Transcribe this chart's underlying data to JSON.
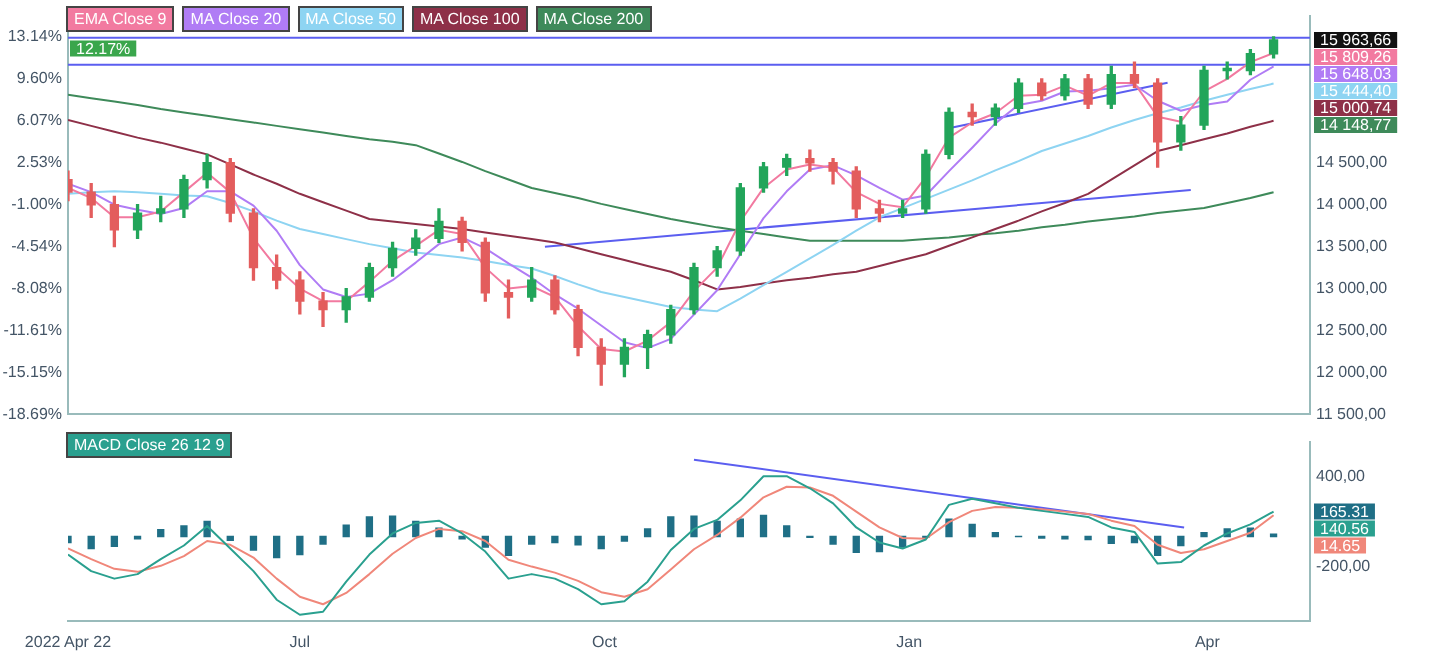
{
  "chart_data": [
    {
      "type": "candlestick",
      "legend": "top left",
      "tick_labels": "y",
      "x": [
        "2022-04-22",
        "2022-04-29",
        "2022-05-06",
        "2022-05-13",
        "2022-05-20",
        "2022-05-27",
        "2022-06-03",
        "2022-06-10",
        "2022-06-17",
        "2022-06-24",
        "2022-07-01",
        "2022-07-08",
        "2022-07-15",
        "2022-07-22",
        "2022-07-29",
        "2022-08-05",
        "2022-08-12",
        "2022-08-19",
        "2022-08-26",
        "2022-09-02",
        "2022-09-09",
        "2022-09-16",
        "2022-09-23",
        "2022-09-30",
        "2022-10-07",
        "2022-10-14",
        "2022-10-21",
        "2022-10-28",
        "2022-11-04",
        "2022-11-11",
        "2022-11-18",
        "2022-11-25",
        "2022-12-02",
        "2022-12-09",
        "2022-12-16",
        "2022-12-23",
        "2022-12-30",
        "2023-01-06",
        "2023-01-13",
        "2023-01-20",
        "2023-01-27",
        "2023-02-03",
        "2023-02-10",
        "2023-02-17",
        "2023-02-24",
        "2023-03-03",
        "2023-03-10",
        "2023-03-17",
        "2023-03-24",
        "2023-03-31",
        "2023-04-07",
        "2023-04-14",
        "2023-04-21"
      ],
      "ohlc": [
        [
          14300,
          14400,
          14050,
          14150
        ],
        [
          14150,
          14250,
          13850,
          14000
        ],
        [
          14000,
          14100,
          13500,
          13700
        ],
        [
          13700,
          14000,
          13600,
          13900
        ],
        [
          13900,
          14100,
          13800,
          13950
        ],
        [
          13950,
          14350,
          13850,
          14300
        ],
        [
          14300,
          14600,
          14200,
          14500
        ],
        [
          14500,
          14550,
          13800,
          13900
        ],
        [
          13900,
          13950,
          13100,
          13250
        ],
        [
          13250,
          13400,
          13000,
          13100
        ],
        [
          13100,
          13200,
          12700,
          12850
        ],
        [
          12850,
          12950,
          12550,
          12750
        ],
        [
          12750,
          13000,
          12600,
          12900
        ],
        [
          12900,
          13300,
          12850,
          13250
        ],
        [
          13250,
          13550,
          13150,
          13480
        ],
        [
          13480,
          13700,
          13400,
          13600
        ],
        [
          13600,
          13950,
          13550,
          13800
        ],
        [
          13800,
          13850,
          13450,
          13550
        ],
        [
          13550,
          13600,
          12850,
          12950
        ],
        [
          12950,
          13100,
          12650,
          12900
        ],
        [
          12900,
          13250,
          12850,
          13100
        ],
        [
          13100,
          13150,
          12700,
          12750
        ],
        [
          12750,
          12800,
          12200,
          12300
        ],
        [
          12300,
          12400,
          11850,
          12100
        ],
        [
          12100,
          12400,
          11950,
          12300
        ],
        [
          12300,
          12500,
          12050,
          12450
        ],
        [
          12450,
          12800,
          12350,
          12750
        ],
        [
          12750,
          13300,
          12700,
          13250
        ],
        [
          13250,
          13500,
          13150,
          13450
        ],
        [
          13450,
          14250,
          13400,
          14200
        ],
        [
          14200,
          14500,
          14150,
          14450
        ],
        [
          14450,
          14600,
          14350,
          14550
        ],
        [
          14550,
          14650,
          14400,
          14500
        ],
        [
          14500,
          14550,
          14250,
          14400
        ],
        [
          14400,
          14450,
          13850,
          13950
        ],
        [
          13950,
          14050,
          13800,
          13900
        ],
        [
          13900,
          14050,
          13850,
          13950
        ],
        [
          13950,
          14650,
          13900,
          14600
        ],
        [
          14600,
          15150,
          14550,
          15100
        ],
        [
          15100,
          15200,
          14950,
          15050
        ],
        [
          15050,
          15200,
          14950,
          15150
        ],
        [
          15150,
          15500,
          15100,
          15450
        ],
        [
          15450,
          15500,
          15250,
          15300
        ],
        [
          15300,
          15550,
          15250,
          15500
        ],
        [
          15500,
          15550,
          15150,
          15200
        ],
        [
          15200,
          15650,
          15150,
          15550
        ],
        [
          15550,
          15700,
          15400,
          15450
        ],
        [
          15450,
          15500,
          14450,
          14750
        ],
        [
          14750,
          15050,
          14650,
          14950
        ],
        [
          14950,
          15650,
          14900,
          15600
        ],
        [
          15600,
          15700,
          15500,
          15600
        ],
        [
          15600,
          15850,
          15550,
          15800
        ],
        [
          15800,
          16000,
          15750,
          15963.66
        ]
      ],
      "colors": [
        "#e35d5d",
        "#e35d5d",
        "#e35d5d",
        "#22a55a",
        "#22a55a",
        "#22a55a",
        "#22a55a",
        "#e35d5d",
        "#e35d5d",
        "#e35d5d",
        "#e35d5d",
        "#e35d5d",
        "#22a55a",
        "#22a55a",
        "#22a55a",
        "#22a55a",
        "#22a55a",
        "#e35d5d",
        "#e35d5d",
        "#e35d5d",
        "#22a55a",
        "#e35d5d",
        "#e35d5d",
        "#e35d5d",
        "#22a55a",
        "#22a55a",
        "#22a55a",
        "#22a55a",
        "#22a55a",
        "#22a55a",
        "#22a55a",
        "#22a55a",
        "#e35d5d",
        "#e35d5d",
        "#e35d5d",
        "#e35d5d",
        "#22a55a",
        "#22a55a",
        "#22a55a",
        "#e35d5d",
        "#22a55a",
        "#22a55a",
        "#e35d5d",
        "#22a55a",
        "#e35d5d",
        "#22a55a",
        "#e35d5d",
        "#e35d5d",
        "#22a55a",
        "#22a55a",
        "#22a55a",
        "#22a55a",
        "#22a55a"
      ],
      "series": [
        {
          "type": "line",
          "name": "EMA Close 9",
          "color": "#f27aa0",
          "values": [
            14200,
            14080,
            13850,
            13850,
            13920,
            14150,
            14380,
            14150,
            13600,
            13250,
            13000,
            12850,
            12850,
            13080,
            13330,
            13510,
            13700,
            13650,
            13250,
            13000,
            13030,
            12900,
            12550,
            12280,
            12250,
            12380,
            12600,
            12970,
            13250,
            13800,
            14200,
            14420,
            14480,
            14440,
            14150,
            14010,
            13970,
            14330,
            14800,
            14980,
            15090,
            15300,
            15310,
            15420,
            15300,
            15450,
            15450,
            15050,
            14990,
            15350,
            15500,
            15700,
            15809.26
          ]
        },
        {
          "type": "line",
          "name": "MA Close 20",
          "color": "#b07cf5",
          "values": [
            14250,
            14150,
            14000,
            13940,
            13890,
            13960,
            14160,
            14160,
            13990,
            13690,
            13280,
            12990,
            12900,
            12940,
            13100,
            13310,
            13530,
            13610,
            13480,
            13300,
            13130,
            12930,
            12760,
            12560,
            12360,
            12290,
            12400,
            12690,
            12980,
            13410,
            13840,
            14160,
            14420,
            14470,
            14350,
            14200,
            14060,
            14110,
            14400,
            14680,
            14970,
            15190,
            15240,
            15350,
            15360,
            15390,
            15430,
            15240,
            15120,
            15190,
            15230,
            15490,
            15648.03
          ]
        },
        {
          "type": "line",
          "name": "MA Close 50",
          "color": "#8ed4f2",
          "values": [
            14130,
            14150,
            14160,
            14150,
            14130,
            14110,
            14100,
            14020,
            13920,
            13810,
            13710,
            13650,
            13590,
            13530,
            13480,
            13430,
            13400,
            13370,
            13330,
            13280,
            13240,
            13150,
            13050,
            12960,
            12900,
            12840,
            12780,
            12750,
            12730,
            12880,
            13040,
            13200,
            13360,
            13520,
            13690,
            13850,
            13960,
            14070,
            14180,
            14290,
            14410,
            14520,
            14640,
            14730,
            14820,
            14920,
            15010,
            15090,
            15160,
            15240,
            15310,
            15380,
            15444.4
          ]
        },
        {
          "type": "line",
          "name": "MA Close 100",
          "color": "#8e3048",
          "values": [
            15010,
            14940,
            14870,
            14800,
            14740,
            14670,
            14600,
            14480,
            14360,
            14250,
            14130,
            14030,
            13930,
            13830,
            13800,
            13770,
            13740,
            13710,
            13670,
            13630,
            13590,
            13550,
            13480,
            13410,
            13340,
            13270,
            13200,
            13100,
            12990,
            13020,
            13060,
            13100,
            13130,
            13170,
            13200,
            13270,
            13340,
            13410,
            13510,
            13610,
            13710,
            13810,
            13920,
            14020,
            14130,
            14300,
            14470,
            14640,
            14710,
            14780,
            14850,
            14930,
            15000.74
          ]
        },
        {
          "type": "line",
          "name": "MA Close 200",
          "color": "#3e8a5a",
          "values": [
            15310,
            15270,
            15230,
            15190,
            15140,
            15100,
            15060,
            15020,
            14980,
            14940,
            14900,
            14860,
            14820,
            14780,
            14750,
            14710,
            14610,
            14510,
            14400,
            14300,
            14200,
            14140,
            14080,
            14010,
            13950,
            13890,
            13830,
            13780,
            13730,
            13690,
            13650,
            13610,
            13570,
            13570,
            13570,
            13570,
            13570,
            13590,
            13610,
            13640,
            13660,
            13690,
            13730,
            13760,
            13800,
            13830,
            13860,
            13900,
            13930,
            13960,
            14020,
            14080,
            14148.77
          ]
        },
        {
          "type": "line",
          "color": "#5b5ef0",
          "x": [
            "2022-09-13",
            "2023-03-27"
          ],
          "values": [
            13500,
            14175
          ]
        },
        {
          "type": "line",
          "color": "#5b5ef0",
          "x": [
            "2023-01-14",
            "2023-03-20"
          ],
          "values": [
            14920,
            15455
          ]
        }
      ],
      "ref_lines": [
        {
          "axis": "y",
          "value": 15990,
          "color": "#5b5ef0"
        },
        {
          "axis": "y",
          "value": 15670,
          "color": "#5b5ef0"
        }
      ],
      "xlim": [
        "2022-04-22",
        "2023-05-02"
      ],
      "ylim": [
        11500,
        16250
      ],
      "yticks": [
        {
          "value": 11500,
          "label": "11 500,00"
        },
        {
          "value": 12000,
          "label": "12 000,00"
        },
        {
          "value": 12500,
          "label": "12 500,00"
        },
        {
          "value": 13000,
          "label": "13 000,00"
        },
        {
          "value": 13500,
          "label": "13 500,00"
        },
        {
          "value": 14000,
          "label": "14 000,00"
        },
        {
          "value": 14500,
          "label": "14 500,00"
        }
      ],
      "y2lim": [
        -18.69,
        14.91
      ],
      "y2ticks": [
        {
          "value": -18.69,
          "label": "-18.69%"
        },
        {
          "value": -15.15,
          "label": "-15.15%"
        },
        {
          "value": -11.61,
          "label": "-11.61%"
        },
        {
          "value": -8.08,
          "label": "-8.08%"
        },
        {
          "value": -4.54,
          "label": "-4.54%"
        },
        {
          "value": -1,
          "label": "-1.00%"
        },
        {
          "value": 2.53,
          "label": "2.53%"
        },
        {
          "value": 6.07,
          "label": "6.07%"
        },
        {
          "value": 9.6,
          "label": "9.60%"
        },
        {
          "value": 13.14,
          "label": "13.14%"
        }
      ],
      "annotations": [
        "15 963,66",
        "15 809,26",
        "15 648,03",
        "15 444,40",
        "15 000,74",
        "14 148,77",
        {
          "text": "12.17%",
          "x": "2022-04-22",
          "y": 15863
        }
      ]
    },
    {
      "type": "line",
      "legend": "top left",
      "x": [
        "2022-04-22",
        "2022-04-29",
        "2022-05-06",
        "2022-05-13",
        "2022-05-20",
        "2022-05-27",
        "2022-06-03",
        "2022-06-10",
        "2022-06-17",
        "2022-06-24",
        "2022-07-01",
        "2022-07-08",
        "2022-07-15",
        "2022-07-22",
        "2022-07-29",
        "2022-08-05",
        "2022-08-12",
        "2022-08-19",
        "2022-08-26",
        "2022-09-02",
        "2022-09-09",
        "2022-09-16",
        "2022-09-23",
        "2022-09-30",
        "2022-10-07",
        "2022-10-14",
        "2022-10-21",
        "2022-10-28",
        "2022-11-04",
        "2022-11-11",
        "2022-11-18",
        "2022-11-25",
        "2022-12-02",
        "2022-12-09",
        "2022-12-16",
        "2022-12-23",
        "2022-12-30",
        "2023-01-06",
        "2023-01-13",
        "2023-01-20",
        "2023-01-27",
        "2023-02-03",
        "2023-02-10",
        "2023-02-17",
        "2023-02-24",
        "2023-03-03",
        "2023-03-10",
        "2023-03-17",
        "2023-03-24",
        "2023-03-31",
        "2023-04-07",
        "2023-04-14",
        "2023-04-21"
      ],
      "series": [
        {
          "type": "bar",
          "color": "#1f6f86",
          "values": [
            -40,
            -80,
            -65,
            -15,
            45,
            70,
            100,
            -25,
            -90,
            -140,
            -120,
            -50,
            75,
            130,
            135,
            100,
            55,
            -15,
            -70,
            -125,
            -50,
            -40,
            -55,
            -80,
            -30,
            50,
            130,
            135,
            100,
            115,
            140,
            70,
            -5,
            -50,
            -105,
            -100,
            -70,
            -5,
            115,
            80,
            25,
            0,
            -10,
            -15,
            -20,
            -45,
            -40,
            -125,
            -60,
            25,
            50,
            55,
            14.65
          ]
        },
        {
          "type": "line",
          "name": "MACD Close 26 12 9",
          "color": "#2aa08f",
          "values": [
            -120,
            -230,
            -280,
            -250,
            -150,
            -60,
            70,
            -80,
            -230,
            -420,
            -520,
            -500,
            -300,
            -120,
            20,
            90,
            105,
            20,
            -100,
            -280,
            -250,
            -280,
            -350,
            -450,
            -430,
            -300,
            -90,
            50,
            110,
            240,
            400,
            400,
            320,
            220,
            60,
            -40,
            -80,
            -20,
            210,
            250,
            220,
            190,
            170,
            150,
            130,
            60,
            30,
            -180,
            -170,
            -60,
            20,
            80,
            165.31
          ]
        },
        {
          "type": "line",
          "color": "#f0877a",
          "values": [
            -80,
            -150,
            -215,
            -235,
            -195,
            -130,
            -30,
            -55,
            -140,
            -280,
            -400,
            -450,
            -375,
            -250,
            -115,
            -10,
            50,
            35,
            -30,
            -155,
            -200,
            -240,
            -295,
            -370,
            -400,
            -350,
            -220,
            -85,
            10,
            125,
            260,
            330,
            325,
            270,
            165,
            60,
            -10,
            -15,
            95,
            170,
            195,
            190,
            180,
            165,
            150,
            105,
            70,
            -55,
            -110,
            -85,
            -30,
            25,
            140.56
          ]
        },
        {
          "type": "line",
          "color": "#5b5ef0",
          "x": [
            "2022-10-28",
            "2023-03-25"
          ],
          "values": [
            510,
            60
          ]
        }
      ],
      "xlim": [
        "2022-04-22",
        "2023-05-02"
      ],
      "xticks": [
        {
          "value": "2022-04-22",
          "label": "2022 Apr 22"
        },
        {
          "value": "2022-07-01",
          "label": "Jul"
        },
        {
          "value": "2022-10-01",
          "label": "Oct"
        },
        {
          "value": "2023-01-01",
          "label": "Jan"
        },
        {
          "value": "2023-04-01",
          "label": "Apr"
        }
      ],
      "ylim": [
        -560,
        630
      ],
      "yticks": [
        {
          "value": -200,
          "label": "-200,00"
        },
        {
          "value": 400,
          "label": "400,00"
        }
      ],
      "annotations": [
        "165.31",
        "140.56",
        "14.65"
      ]
    }
  ]
}
